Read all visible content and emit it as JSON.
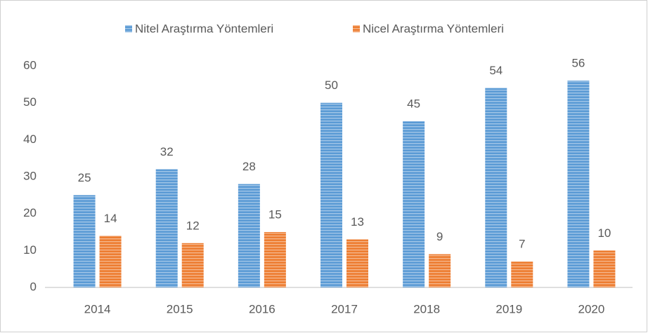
{
  "chart_data": {
    "type": "bar",
    "categories": [
      "2014",
      "2015",
      "2016",
      "2017",
      "2018",
      "2019",
      "2020"
    ],
    "series": [
      {
        "name": "Nitel Araştırma Yöntemleri",
        "color": "#5b9bd5",
        "values": [
          25,
          32,
          28,
          50,
          45,
          54,
          56
        ]
      },
      {
        "name": "Nicel Araştırma Yöntemleri",
        "color": "#ed7d31",
        "values": [
          14,
          12,
          15,
          13,
          9,
          7,
          10
        ]
      }
    ],
    "ylim": [
      0,
      60
    ],
    "yticks": [
      0,
      10,
      20,
      30,
      40,
      50,
      60
    ],
    "grid": false,
    "legend": "top"
  }
}
